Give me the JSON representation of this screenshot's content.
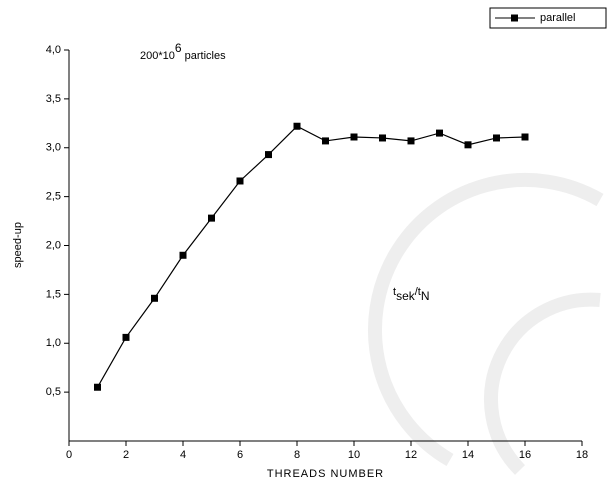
{
  "chart_data": {
    "type": "line",
    "x_label": "THREADS NUMBER",
    "y_label": "speed-up",
    "annotations": [
      {
        "text": "200*10",
        "sup": "6",
        "rest": " particles"
      },
      {
        "text": "t",
        "sub": "sek",
        "rest": "/t",
        "sub2": "N"
      }
    ],
    "x": [
      1,
      2,
      3,
      4,
      5,
      6,
      7,
      8,
      9,
      10,
      11,
      12,
      13,
      14,
      15,
      16
    ],
    "series": [
      {
        "name": "parallel",
        "color": "#000000",
        "values": [
          0.55,
          1.06,
          1.46,
          1.9,
          2.28,
          2.66,
          2.93,
          3.22,
          3.07,
          3.11,
          3.1,
          3.07,
          3.15,
          3.03,
          3.1,
          3.11
        ]
      }
    ],
    "xlim": [
      0,
      18
    ],
    "xticks": [
      0,
      2,
      4,
      6,
      8,
      10,
      12,
      14,
      16,
      18
    ],
    "ylim": [
      0,
      4
    ],
    "yticks": [
      {
        "value": 0.5,
        "label": "0,5"
      },
      {
        "value": 1,
        "label": "1,0"
      },
      {
        "value": 1.5,
        "label": "1,5"
      },
      {
        "value": 2,
        "label": "2,0"
      },
      {
        "value": 2.5,
        "label": "2,5"
      },
      {
        "value": 3,
        "label": "3,0"
      },
      {
        "value": 3.5,
        "label": "3,5"
      },
      {
        "value": 4,
        "label": "4,0"
      }
    ],
    "legend": "top-right",
    "grid": false
  }
}
